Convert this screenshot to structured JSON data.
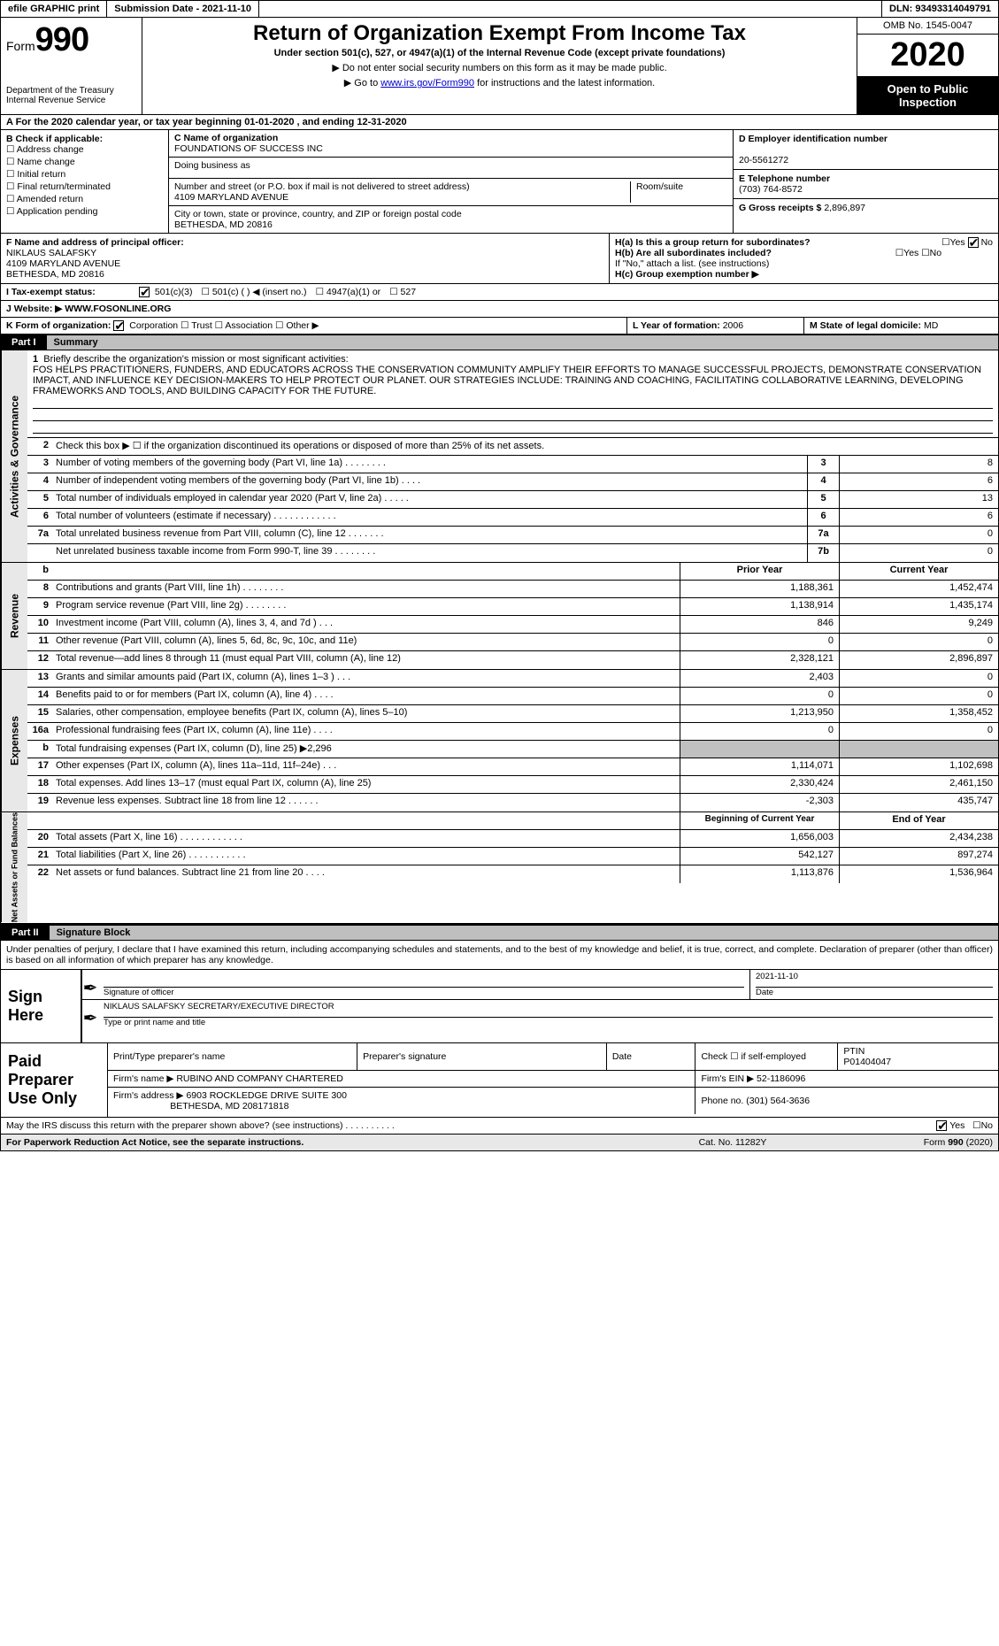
{
  "topbar": {
    "efile": "efile GRAPHIC print",
    "submission": "Submission Date - 2021-11-10",
    "dln": "DLN: 93493314049791"
  },
  "header": {
    "form_word": "Form",
    "form_num": "990",
    "dept": "Department of the Treasury\nInternal Revenue Service",
    "title": "Return of Organization Exempt From Income Tax",
    "sub": "Under section 501(c), 527, or 4947(a)(1) of the Internal Revenue Code (except private foundations)",
    "note1": "▶ Do not enter social security numbers on this form as it may be made public.",
    "note2_pre": "▶ Go to ",
    "note2_link": "www.irs.gov/Form990",
    "note2_post": " for instructions and the latest information.",
    "omb": "OMB No. 1545-0047",
    "year": "2020",
    "inspect": "Open to Public Inspection"
  },
  "row_a": "A For the 2020 calendar year, or tax year beginning 01-01-2020   , and ending 12-31-2020",
  "col_b": {
    "label": "B Check if applicable:",
    "opts": [
      "Address change",
      "Name change",
      "Initial return",
      "Final return/terminated",
      "Amended return",
      "Application pending"
    ]
  },
  "col_c": {
    "name_lbl": "C Name of organization",
    "name": "FOUNDATIONS OF SUCCESS INC",
    "dba_lbl": "Doing business as",
    "dba": "",
    "street_lbl": "Number and street (or P.O. box if mail is not delivered to street address)",
    "street": "4109 MARYLAND AVENUE",
    "room_lbl": "Room/suite",
    "city_lbl": "City or town, state or province, country, and ZIP or foreign postal code",
    "city": "BETHESDA, MD  20816"
  },
  "col_d": {
    "ein_lbl": "D Employer identification number",
    "ein": "20-5561272",
    "tel_lbl": "E Telephone number",
    "tel": "(703) 764-8572",
    "gross_lbl": "G Gross receipts $",
    "gross": "2,896,897"
  },
  "row_f": {
    "lbl": "F Name and address of principal officer:",
    "name": "NIKLAUS SALAFSKY",
    "street": "4109 MARYLAND AVENUE",
    "city": "BETHESDA, MD  20816"
  },
  "row_h": {
    "ha": "H(a)  Is this a group return for subordinates?",
    "hb": "H(b)  Are all subordinates included?",
    "hb_note": "If \"No,\" attach a list. (see instructions)",
    "hc": "H(c)  Group exemption number ▶",
    "yes": "Yes",
    "no": "No"
  },
  "row_i": {
    "lbl": "I   Tax-exempt status:",
    "o1": "501(c)(3)",
    "o2": "501(c) (  ) ◀ (insert no.)",
    "o3": "4947(a)(1) or",
    "o4": "527"
  },
  "row_j": {
    "lbl": "J  Website: ▶",
    "val": "WWW.FOSONLINE.ORG"
  },
  "row_k": {
    "lbl": "K Form of organization:",
    "opts": [
      "Corporation",
      "Trust",
      "Association",
      "Other ▶"
    ]
  },
  "row_l": {
    "lbl": "L Year of formation:",
    "val": "2006"
  },
  "row_m": {
    "lbl": "M State of legal domicile:",
    "val": "MD"
  },
  "part1": {
    "num": "Part I",
    "title": "Summary"
  },
  "mission": {
    "lbl": "Briefly describe the organization's mission or most significant activities:",
    "text": "FOS HELPS PRACTITIONERS, FUNDERS, AND EDUCATORS ACROSS THE CONSERVATION COMMUNITY AMPLIFY THEIR EFFORTS TO MANAGE SUCCESSFUL PROJECTS, DEMONSTRATE CONSERVATION IMPACT, AND INFLUENCE KEY DECISION-MAKERS TO HELP PROTECT OUR PLANET. OUR STRATEGIES INCLUDE: TRAINING AND COACHING, FACILITATING COLLABORATIVE LEARNING, DEVELOPING FRAMEWORKS AND TOOLS, AND BUILDING CAPACITY FOR THE FUTURE."
  },
  "gov_lines": [
    {
      "n": "2",
      "d": "Check this box ▶ ☐  if the organization discontinued its operations or disposed of more than 25% of its net assets."
    },
    {
      "n": "3",
      "d": "Number of voting members of the governing body (Part VI, line 1a)   .    .    .    .    .    .    .    .",
      "m": "3",
      "v": "8"
    },
    {
      "n": "4",
      "d": "Number of independent voting members of the governing body (Part VI, line 1b)   .    .    .    .",
      "m": "4",
      "v": "6"
    },
    {
      "n": "5",
      "d": "Total number of individuals employed in calendar year 2020 (Part V, line 2a)   .    .    .    .    .",
      "m": "5",
      "v": "13"
    },
    {
      "n": "6",
      "d": "Total number of volunteers (estimate if necessary)   .    .    .    .    .    .    .    .    .    .    .    .",
      "m": "6",
      "v": "6"
    },
    {
      "n": "7a",
      "d": "Total unrelated business revenue from Part VIII, column (C), line 12   .    .    .    .    .    .    .",
      "m": "7a",
      "v": "0"
    },
    {
      "n": "",
      "d": "Net unrelated business taxable income from Form 990-T, line 39   .    .    .    .    .    .    .    .",
      "m": "7b",
      "v": "0"
    }
  ],
  "rev_hdr": {
    "py": "Prior Year",
    "cy": "Current Year"
  },
  "rev_lines": [
    {
      "n": "8",
      "d": "Contributions and grants (Part VIII, line 1h)   .    .    .    .    .    .    .    .",
      "py": "1,188,361",
      "cy": "1,452,474"
    },
    {
      "n": "9",
      "d": "Program service revenue (Part VIII, line 2g)   .    .    .    .    .    .    .    .",
      "py": "1,138,914",
      "cy": "1,435,174"
    },
    {
      "n": "10",
      "d": "Investment income (Part VIII, column (A), lines 3, 4, and 7d )   .    .    .",
      "py": "846",
      "cy": "9,249"
    },
    {
      "n": "11",
      "d": "Other revenue (Part VIII, column (A), lines 5, 6d, 8c, 9c, 10c, and 11e)",
      "py": "0",
      "cy": "0"
    },
    {
      "n": "12",
      "d": "Total revenue—add lines 8 through 11 (must equal Part VIII, column (A), line 12)",
      "py": "2,328,121",
      "cy": "2,896,897"
    }
  ],
  "exp_lines": [
    {
      "n": "13",
      "d": "Grants and similar amounts paid (Part IX, column (A), lines 1–3 )  .    .    .",
      "py": "2,403",
      "cy": "0"
    },
    {
      "n": "14",
      "d": "Benefits paid to or for members (Part IX, column (A), line 4)   .    .    .    .",
      "py": "0",
      "cy": "0"
    },
    {
      "n": "15",
      "d": "Salaries, other compensation, employee benefits (Part IX, column (A), lines 5–10)",
      "py": "1,213,950",
      "cy": "1,358,452"
    },
    {
      "n": "16a",
      "d": "Professional fundraising fees (Part IX, column (A), line 11e)   .    .    .    .",
      "py": "0",
      "cy": "0"
    },
    {
      "n": "b",
      "d": "Total fundraising expenses (Part IX, column (D), line 25) ▶2,296",
      "py": "",
      "cy": "",
      "grey": true
    },
    {
      "n": "17",
      "d": "Other expenses (Part IX, column (A), lines 11a–11d, 11f–24e)   .    .    .",
      "py": "1,114,071",
      "cy": "1,102,698"
    },
    {
      "n": "18",
      "d": "Total expenses. Add lines 13–17 (must equal Part IX, column (A), line 25)",
      "py": "2,330,424",
      "cy": "2,461,150"
    },
    {
      "n": "19",
      "d": "Revenue less expenses. Subtract line 18 from line 12   .    .    .    .    .    .",
      "py": "-2,303",
      "cy": "435,747"
    }
  ],
  "net_hdr": {
    "py": "Beginning of Current Year",
    "cy": "End of Year"
  },
  "net_lines": [
    {
      "n": "20",
      "d": "Total assets (Part X, line 16)   .    .    .    .    .    .    .    .    .    .    .    .",
      "py": "1,656,003",
      "cy": "2,434,238"
    },
    {
      "n": "21",
      "d": "Total liabilities (Part X, line 26)   .    .    .    .    .    .    .    .    .    .    .",
      "py": "542,127",
      "cy": "897,274"
    },
    {
      "n": "22",
      "d": "Net assets or fund balances. Subtract line 21 from line 20   .    .    .    .",
      "py": "1,113,876",
      "cy": "1,536,964"
    }
  ],
  "vtabs": {
    "gov": "Activities & Governance",
    "rev": "Revenue",
    "exp": "Expenses",
    "net": "Net Assets or Fund Balances"
  },
  "part2": {
    "num": "Part II",
    "title": "Signature Block"
  },
  "sig_intro": "Under penalties of perjury, I declare that I have examined this return, including accompanying schedules and statements, and to the best of my knowledge and belief, it is true, correct, and complete. Declaration of preparer (other than officer) is based on all information of which preparer has any knowledge.",
  "sign": {
    "here": "Sign Here",
    "sig_lbl": "Signature of officer",
    "date_lbl": "Date",
    "date": "2021-11-10",
    "name": "NIKLAUS SALAFSKY SECRETARY/EXECUTIVE DIRECTOR",
    "name_lbl": "Type or print name and title"
  },
  "prep": {
    "lbl": "Paid Preparer Use Only",
    "h1": "Print/Type preparer's name",
    "h2": "Preparer's signature",
    "h3": "Date",
    "h4": "Check ☐ if self-employed",
    "h5_lbl": "PTIN",
    "h5": "P01404047",
    "firm_lbl": "Firm's name    ▶",
    "firm": "RUBINO AND COMPANY CHARTERED",
    "ein_lbl": "Firm's EIN ▶",
    "ein": "52-1186096",
    "addr_lbl": "Firm's address ▶",
    "addr1": "6903 ROCKLEDGE DRIVE SUITE 300",
    "addr2": "BETHESDA, MD  208171818",
    "phone_lbl": "Phone no.",
    "phone": "(301) 564-3636"
  },
  "discuss": {
    "q": "May the IRS discuss this return with the preparer shown above? (see instructions)   .    .    .    .    .    .    .    .    .    .",
    "yes": "Yes",
    "no": "No"
  },
  "footer": {
    "l": "For Paperwork Reduction Act Notice, see the separate instructions.",
    "c": "Cat. No. 11282Y",
    "r": "Form 990 (2020)"
  }
}
